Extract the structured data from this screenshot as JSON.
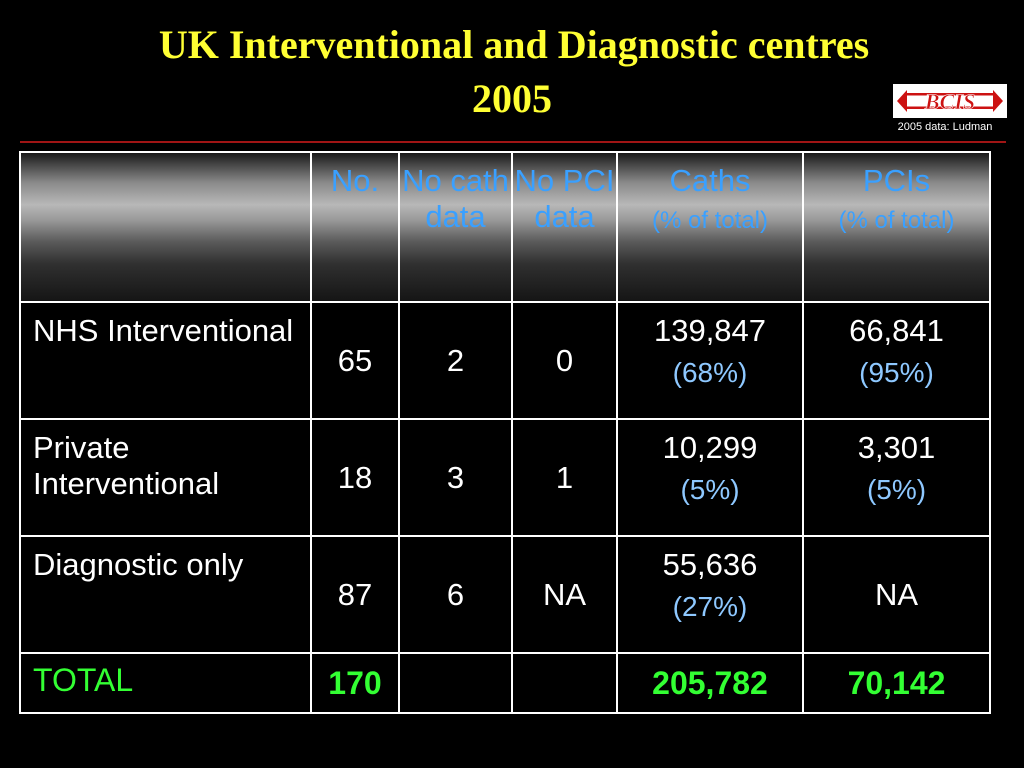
{
  "slide": {
    "title_line1": "UK Interventional and Diagnostic centres",
    "title_line2": "2005",
    "logo_text": "BCIS",
    "credit": "2005 data: Ludman"
  },
  "colors": {
    "title": "#ffff33",
    "header_text": "#3aa0ff",
    "percent_text": "#8ec8ff",
    "total_text": "#33ff33",
    "logo_red": "#cc1111",
    "rule": "#a01515"
  },
  "table": {
    "headers": [
      {
        "label": ""
      },
      {
        "label": "No."
      },
      {
        "label": "No cath data"
      },
      {
        "label": "No PCI data"
      },
      {
        "label": "Caths",
        "sub": "(% of total)"
      },
      {
        "label": "PCIs",
        "sub": "(% of total)"
      }
    ],
    "rows": [
      {
        "label": "NHS Interventional",
        "no": "65",
        "no_cath": "2",
        "no_pci": "0",
        "caths": "139,847",
        "caths_pct": "(68%)",
        "pcis": "66,841",
        "pcis_pct": "(95%)"
      },
      {
        "label": "Private Interventional",
        "no": "18",
        "no_cath": "3",
        "no_pci": "1",
        "caths": "10,299",
        "caths_pct": "(5%)",
        "pcis": "3,301",
        "pcis_pct": "(5%)"
      },
      {
        "label": "Diagnostic only",
        "no": "87",
        "no_cath": "6",
        "no_pci": "NA",
        "caths": "55,636",
        "caths_pct": "(27%)",
        "pcis": "NA",
        "pcis_pct": ""
      }
    ],
    "total": {
      "label": "TOTAL",
      "no": "170",
      "no_cath": "",
      "no_pci": "",
      "caths": "205,782",
      "pcis": "70,142"
    }
  }
}
